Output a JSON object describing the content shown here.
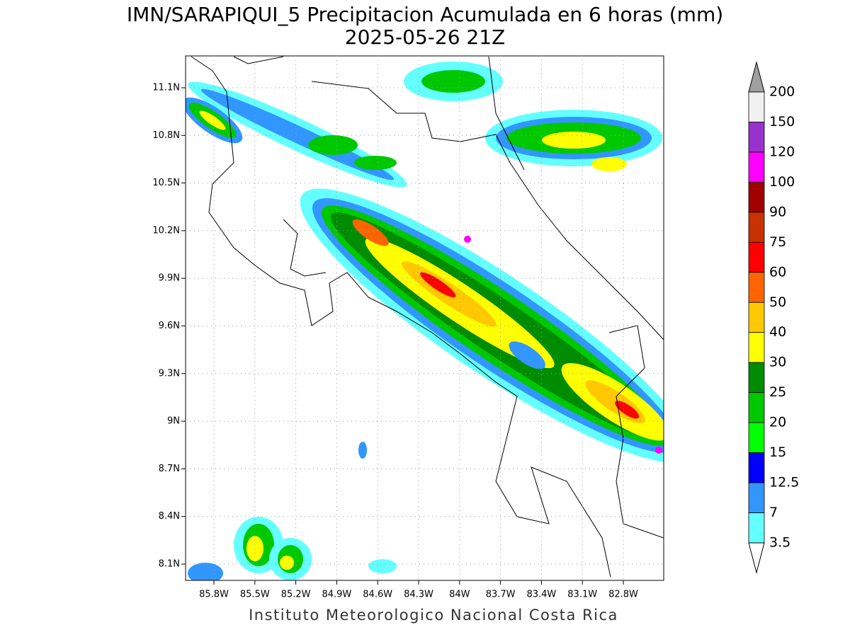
{
  "title": {
    "line1": "IMN/SARAPIQUI_5 Precipitacion Acumulada en 6 horas (mm)",
    "line2": "2025-05-26 21Z"
  },
  "x_ticks": [
    "85.8W",
    "85.5W",
    "85.2W",
    "84.9W",
    "84.6W",
    "84.3W",
    "84W",
    "83.7W",
    "83.4W",
    "83.1W",
    "82.8W"
  ],
  "y_ticks": [
    "11.1N",
    "10.8N",
    "10.5N",
    "10.2N",
    "9.9N",
    "9.6N",
    "9.3N",
    "9N",
    "8.7N",
    "8.4N",
    "8.1N"
  ],
  "colorbar": {
    "labels": [
      "200",
      "150",
      "120",
      "100",
      "90",
      "75",
      "60",
      "50",
      "40",
      "30",
      "25",
      "20",
      "15",
      "12.5",
      "7",
      "3.5"
    ],
    "colors": [
      "#f0f0f0",
      "#9932cc",
      "#ff00ff",
      "#a00000",
      "#c83200",
      "#ff0000",
      "#ff6400",
      "#ffc800",
      "#ffff00",
      "#008c00",
      "#00c800",
      "#00ff00",
      "#0000ff",
      "#3296ff",
      "#64ffff"
    ],
    "over_color": "#a0a0a0",
    "under_color": "#ffffff"
  },
  "footer": "Instituto Meteorologico Nacional Costa Rica"
}
